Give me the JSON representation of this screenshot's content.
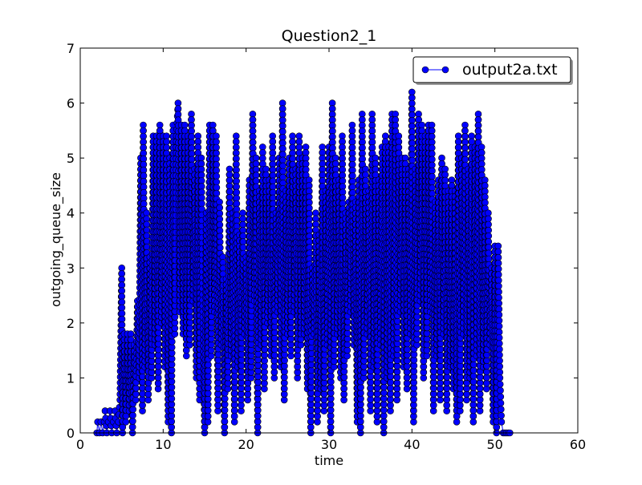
{
  "chart_data": {
    "type": "line",
    "title": "Question2_1",
    "xlabel": "time",
    "ylabel": "outgoing_queue_size",
    "xlim": [
      0,
      60
    ],
    "ylim": [
      0,
      7
    ],
    "xticks": [
      0,
      10,
      20,
      30,
      40,
      50,
      60
    ],
    "yticks": [
      0,
      1,
      2,
      3,
      4,
      5,
      6,
      7
    ],
    "grid": false,
    "legend_position": "top-right",
    "series": [
      {
        "name": "output2a.txt",
        "color": "#0000ff",
        "marker": "circle",
        "style": "line-with-markers",
        "x_range": [
          2,
          52
        ],
        "points": [
          [
            2.0,
            0.0
          ],
          [
            2.1,
            0.2
          ],
          [
            2.3,
            0.0
          ],
          [
            2.5,
            0.2
          ],
          [
            2.7,
            0.0
          ],
          [
            2.9,
            0.2
          ],
          [
            3.0,
            0.4
          ],
          [
            3.2,
            0.0
          ],
          [
            3.4,
            0.2
          ],
          [
            3.6,
            0.4
          ],
          [
            3.8,
            0.0
          ],
          [
            4.0,
            0.2
          ],
          [
            4.2,
            0.4
          ],
          [
            4.4,
            0.0
          ],
          [
            4.6,
            0.2
          ],
          [
            4.8,
            0.6
          ],
          [
            5.0,
            3.0
          ],
          [
            5.1,
            0.0
          ],
          [
            5.3,
            1.8
          ],
          [
            5.5,
            0.2
          ],
          [
            5.7,
            1.8
          ],
          [
            5.9,
            0.4
          ],
          [
            6.1,
            1.8
          ],
          [
            6.3,
            0.0
          ],
          [
            6.5,
            1.6
          ],
          [
            6.7,
            0.6
          ],
          [
            6.9,
            2.4
          ],
          [
            7.1,
            1.0
          ],
          [
            7.3,
            5.0
          ],
          [
            7.5,
            0.4
          ],
          [
            7.6,
            5.6
          ],
          [
            7.8,
            1.2
          ],
          [
            8.0,
            4.0
          ],
          [
            8.2,
            0.6
          ],
          [
            8.4,
            3.2
          ],
          [
            8.6,
            1.0
          ],
          [
            8.8,
            5.4
          ],
          [
            9.0,
            1.6
          ],
          [
            9.2,
            5.4
          ],
          [
            9.4,
            0.8
          ],
          [
            9.6,
            5.6
          ],
          [
            9.8,
            2.0
          ],
          [
            10.0,
            5.4
          ],
          [
            10.2,
            1.2
          ],
          [
            10.4,
            5.4
          ],
          [
            10.6,
            0.2
          ],
          [
            10.8,
            5.0
          ],
          [
            11.0,
            0.0
          ],
          [
            11.2,
            5.6
          ],
          [
            11.4,
            1.8
          ],
          [
            11.6,
            5.4
          ],
          [
            11.8,
            6.0
          ],
          [
            12.0,
            2.2
          ],
          [
            12.2,
            5.6
          ],
          [
            12.4,
            1.8
          ],
          [
            12.6,
            5.6
          ],
          [
            12.8,
            1.4
          ],
          [
            13.0,
            5.4
          ],
          [
            13.2,
            1.6
          ],
          [
            13.4,
            5.8
          ],
          [
            13.6,
            2.4
          ],
          [
            13.8,
            4.8
          ],
          [
            14.0,
            1.0
          ],
          [
            14.2,
            5.4
          ],
          [
            14.4,
            0.6
          ],
          [
            14.6,
            5.0
          ],
          [
            14.8,
            2.0
          ],
          [
            15.0,
            0.0
          ],
          [
            15.2,
            4.0
          ],
          [
            15.4,
            0.2
          ],
          [
            15.6,
            5.6
          ],
          [
            15.8,
            1.4
          ],
          [
            16.0,
            5.6
          ],
          [
            16.2,
            2.2
          ],
          [
            16.4,
            5.4
          ],
          [
            16.6,
            0.4
          ],
          [
            16.8,
            4.2
          ],
          [
            17.0,
            1.6
          ],
          [
            17.2,
            3.2
          ],
          [
            17.4,
            0.0
          ],
          [
            17.6,
            2.8
          ],
          [
            17.8,
            0.8
          ],
          [
            18.0,
            4.8
          ],
          [
            18.2,
            1.4
          ],
          [
            18.4,
            4.0
          ],
          [
            18.6,
            0.2
          ],
          [
            18.8,
            5.4
          ],
          [
            19.0,
            1.2
          ],
          [
            19.2,
            3.6
          ],
          [
            19.4,
            0.4
          ],
          [
            19.6,
            4.0
          ],
          [
            19.8,
            1.8
          ],
          [
            20.0,
            3.2
          ],
          [
            20.2,
            0.6
          ],
          [
            20.4,
            4.6
          ],
          [
            20.6,
            1.0
          ],
          [
            20.8,
            5.8
          ],
          [
            21.0,
            2.4
          ],
          [
            21.2,
            5.0
          ],
          [
            21.4,
            0.0
          ],
          [
            21.6,
            4.4
          ],
          [
            21.8,
            1.6
          ],
          [
            22.0,
            5.2
          ],
          [
            22.2,
            0.8
          ],
          [
            22.4,
            4.8
          ],
          [
            22.6,
            2.0
          ],
          [
            22.8,
            4.6
          ],
          [
            23.0,
            1.4
          ],
          [
            23.2,
            5.4
          ],
          [
            23.4,
            1.0
          ],
          [
            23.6,
            4.0
          ],
          [
            23.8,
            2.2
          ],
          [
            24.0,
            5.0
          ],
          [
            24.2,
            1.2
          ],
          [
            24.4,
            6.0
          ],
          [
            24.6,
            0.6
          ],
          [
            24.8,
            4.4
          ],
          [
            25.0,
            1.8
          ],
          [
            25.2,
            5.0
          ],
          [
            25.4,
            1.4
          ],
          [
            25.6,
            5.4
          ],
          [
            25.8,
            2.2
          ],
          [
            26.0,
            4.8
          ],
          [
            26.2,
            1.0
          ],
          [
            26.4,
            5.4
          ],
          [
            26.6,
            1.6
          ],
          [
            26.8,
            5.0
          ],
          [
            27.0,
            1.8
          ],
          [
            27.2,
            5.2
          ],
          [
            27.4,
            0.8
          ],
          [
            27.6,
            4.6
          ],
          [
            27.8,
            0.0
          ],
          [
            28.0,
            3.0
          ],
          [
            28.2,
            1.8
          ],
          [
            28.4,
            4.0
          ],
          [
            28.6,
            0.2
          ],
          [
            28.8,
            3.6
          ],
          [
            29.0,
            0.8
          ],
          [
            29.2,
            5.2
          ],
          [
            29.4,
            0.4
          ],
          [
            29.6,
            4.4
          ],
          [
            29.8,
            1.6
          ],
          [
            30.0,
            5.2
          ],
          [
            30.2,
            0.0
          ],
          [
            30.4,
            6.0
          ],
          [
            30.6,
            1.2
          ],
          [
            30.8,
            5.0
          ],
          [
            31.0,
            1.8
          ],
          [
            31.2,
            4.6
          ],
          [
            31.4,
            1.0
          ],
          [
            31.6,
            5.4
          ],
          [
            31.8,
            0.6
          ],
          [
            32.0,
            4.0
          ],
          [
            32.2,
            1.4
          ],
          [
            32.4,
            4.2
          ],
          [
            32.6,
            2.2
          ],
          [
            32.8,
            5.6
          ],
          [
            33.0,
            1.6
          ],
          [
            33.2,
            4.2
          ],
          [
            33.4,
            0.2
          ],
          [
            33.6,
            4.6
          ],
          [
            33.8,
            0.0
          ],
          [
            34.0,
            5.8
          ],
          [
            34.2,
            1.0
          ],
          [
            34.4,
            4.8
          ],
          [
            34.6,
            1.8
          ],
          [
            34.8,
            4.4
          ],
          [
            35.0,
            0.4
          ],
          [
            35.2,
            5.8
          ],
          [
            35.4,
            1.2
          ],
          [
            35.6,
            5.0
          ],
          [
            35.8,
            0.2
          ],
          [
            36.0,
            4.6
          ],
          [
            36.2,
            1.6
          ],
          [
            36.4,
            5.2
          ],
          [
            36.6,
            0.0
          ],
          [
            36.8,
            5.4
          ],
          [
            37.0,
            1.0
          ],
          [
            37.2,
            5.2
          ],
          [
            37.4,
            0.4
          ],
          [
            37.6,
            5.8
          ],
          [
            37.8,
            1.4
          ],
          [
            38.0,
            5.8
          ],
          [
            38.2,
            0.6
          ],
          [
            38.4,
            5.4
          ],
          [
            38.6,
            2.2
          ],
          [
            38.8,
            5.0
          ],
          [
            39.0,
            1.2
          ],
          [
            39.2,
            5.0
          ],
          [
            39.4,
            0.8
          ],
          [
            39.6,
            4.8
          ],
          [
            39.8,
            1.8
          ],
          [
            40.0,
            6.2
          ],
          [
            40.2,
            0.2
          ],
          [
            40.4,
            4.8
          ],
          [
            40.6,
            1.6
          ],
          [
            40.8,
            5.8
          ],
          [
            41.0,
            2.4
          ],
          [
            41.2,
            5.6
          ],
          [
            41.4,
            1.0
          ],
          [
            41.6,
            5.4
          ],
          [
            41.8,
            1.4
          ],
          [
            42.0,
            5.6
          ],
          [
            42.2,
            2.2
          ],
          [
            42.4,
            5.6
          ],
          [
            42.6,
            0.4
          ],
          [
            42.8,
            4.2
          ],
          [
            43.0,
            1.4
          ],
          [
            43.2,
            4.6
          ],
          [
            43.4,
            0.6
          ],
          [
            43.6,
            5.0
          ],
          [
            43.8,
            1.8
          ],
          [
            44.0,
            4.8
          ],
          [
            44.2,
            0.4
          ],
          [
            44.4,
            4.4
          ],
          [
            44.6,
            1.2
          ],
          [
            44.8,
            4.6
          ],
          [
            45.0,
            0.8
          ],
          [
            45.2,
            4.4
          ],
          [
            45.4,
            0.2
          ],
          [
            45.6,
            5.4
          ],
          [
            45.8,
            0.4
          ],
          [
            46.0,
            5.0
          ],
          [
            46.2,
            1.8
          ],
          [
            46.4,
            5.6
          ],
          [
            46.6,
            0.6
          ],
          [
            46.8,
            4.8
          ],
          [
            47.0,
            1.0
          ],
          [
            47.2,
            5.4
          ],
          [
            47.4,
            0.2
          ],
          [
            47.6,
            5.2
          ],
          [
            47.8,
            1.4
          ],
          [
            48.0,
            5.8
          ],
          [
            48.2,
            0.4
          ],
          [
            48.4,
            5.2
          ],
          [
            48.6,
            1.2
          ],
          [
            48.8,
            4.6
          ],
          [
            49.0,
            0.8
          ],
          [
            49.2,
            4.0
          ],
          [
            49.4,
            1.6
          ],
          [
            49.6,
            3.0
          ],
          [
            49.8,
            0.2
          ],
          [
            50.0,
            3.4
          ],
          [
            50.2,
            0.0
          ],
          [
            50.4,
            3.4
          ],
          [
            50.6,
            1.0
          ],
          [
            50.8,
            0.2
          ],
          [
            51.0,
            0.0
          ],
          [
            51.2,
            0.0
          ],
          [
            51.4,
            0.0
          ],
          [
            51.6,
            0.0
          ],
          [
            51.8,
            0.0
          ]
        ]
      }
    ]
  }
}
